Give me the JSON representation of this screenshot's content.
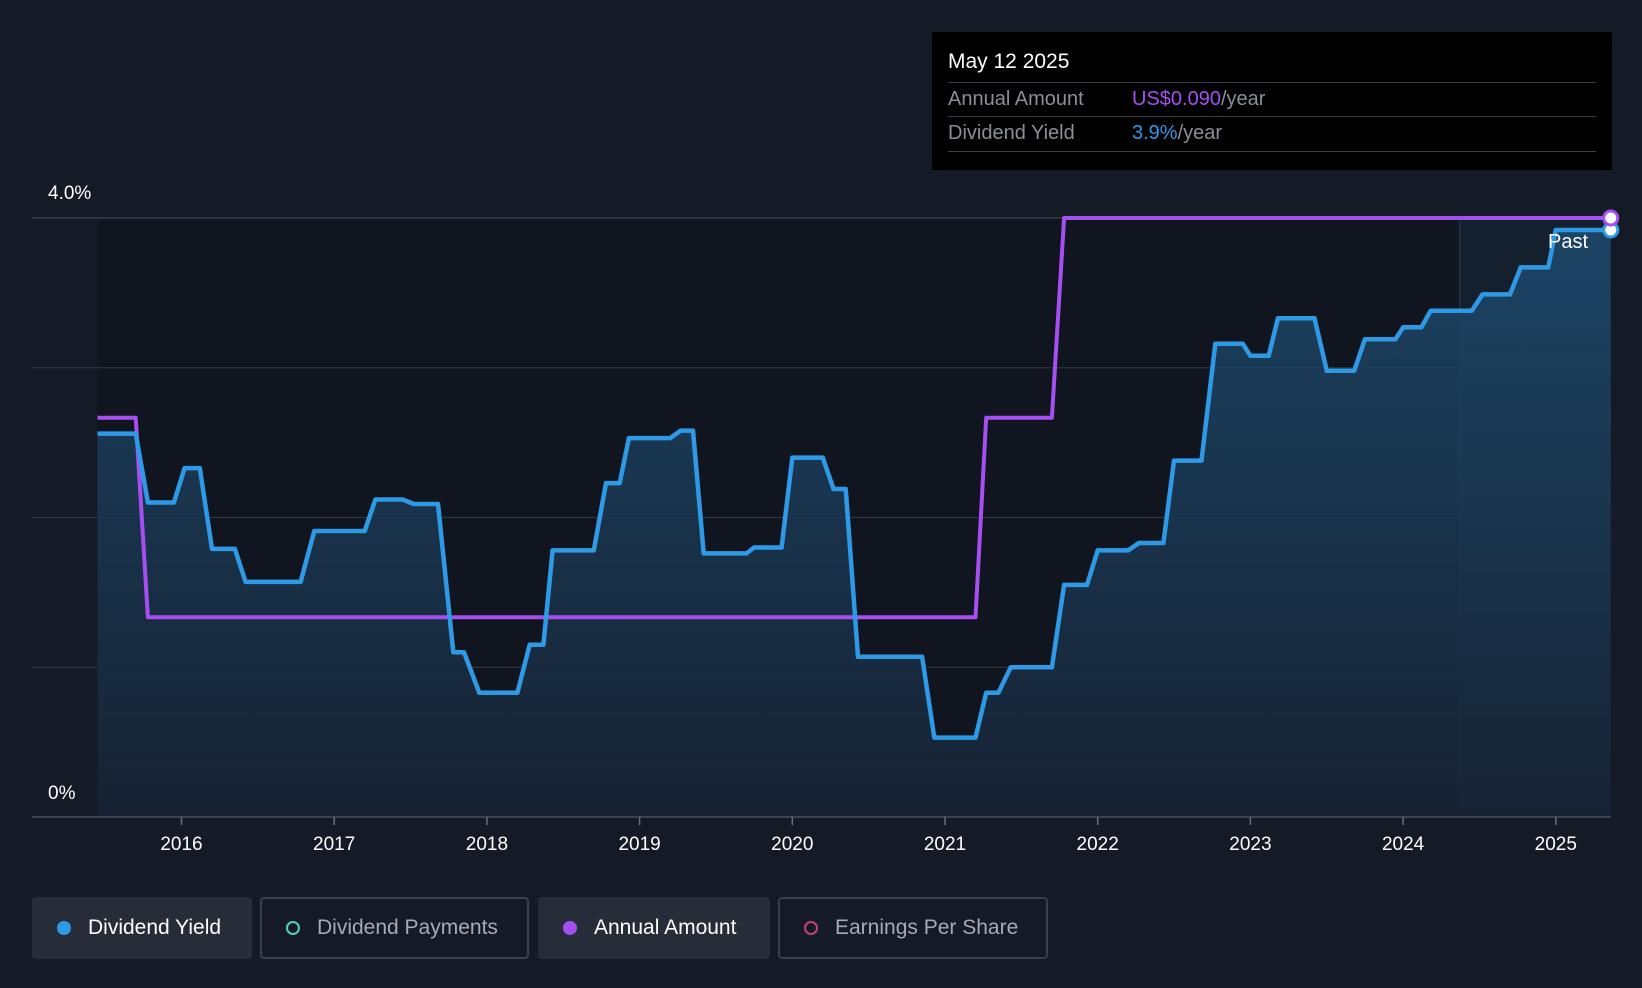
{
  "tooltip": {
    "date": "May 12 2025",
    "rows": [
      {
        "label": "Annual Amount",
        "value": "US$0.090",
        "unit": "/year",
        "color": "#a54ff0"
      },
      {
        "label": "Dividend Yield",
        "value": "3.9%",
        "unit": "/year",
        "color": "#2e9ae6"
      }
    ]
  },
  "y_axis": {
    "top_label": "4.0%",
    "bottom_label": "0%"
  },
  "past_label": "Past",
  "legend": [
    {
      "label": "Dividend Yield",
      "color": "#2e9ae6",
      "active": true
    },
    {
      "label": "Dividend Payments",
      "color": "#4fd1c5",
      "active": false
    },
    {
      "label": "Annual Amount",
      "color": "#a54ff0",
      "active": true
    },
    {
      "label": "Earnings Per Share",
      "color": "#c0417a",
      "active": false
    }
  ],
  "chart_data": {
    "type": "line",
    "x_ticks": [
      "2016",
      "2017",
      "2018",
      "2019",
      "2020",
      "2021",
      "2022",
      "2023",
      "2024",
      "2025"
    ],
    "ylim": [
      0,
      4.0
    ],
    "grid": true,
    "series": [
      {
        "name": "Dividend Yield",
        "unit": "%",
        "color": "#2e9ae6",
        "points": [
          [
            2015.45,
            2.56
          ],
          [
            2015.7,
            2.56
          ],
          [
            2015.78,
            2.1
          ],
          [
            2015.95,
            2.1
          ],
          [
            2016.02,
            2.33
          ],
          [
            2016.12,
            2.33
          ],
          [
            2016.2,
            1.79
          ],
          [
            2016.35,
            1.79
          ],
          [
            2016.42,
            1.57
          ],
          [
            2016.78,
            1.57
          ],
          [
            2016.87,
            1.91
          ],
          [
            2017.2,
            1.91
          ],
          [
            2017.27,
            2.12
          ],
          [
            2017.45,
            2.12
          ],
          [
            2017.52,
            2.09
          ],
          [
            2017.68,
            2.09
          ],
          [
            2017.78,
            1.1
          ],
          [
            2017.85,
            1.1
          ],
          [
            2017.95,
            0.83
          ],
          [
            2018.2,
            0.83
          ],
          [
            2018.28,
            1.15
          ],
          [
            2018.37,
            1.15
          ],
          [
            2018.43,
            1.78
          ],
          [
            2018.7,
            1.78
          ],
          [
            2018.78,
            2.23
          ],
          [
            2018.87,
            2.23
          ],
          [
            2018.93,
            2.53
          ],
          [
            2019.2,
            2.53
          ],
          [
            2019.27,
            2.58
          ],
          [
            2019.35,
            2.58
          ],
          [
            2019.42,
            1.76
          ],
          [
            2019.7,
            1.76
          ],
          [
            2019.75,
            1.8
          ],
          [
            2019.93,
            1.8
          ],
          [
            2020.0,
            2.4
          ],
          [
            2020.2,
            2.4
          ],
          [
            2020.27,
            2.19
          ],
          [
            2020.35,
            2.19
          ],
          [
            2020.43,
            1.07
          ],
          [
            2020.85,
            1.07
          ],
          [
            2020.93,
            0.53
          ],
          [
            2021.2,
            0.53
          ],
          [
            2021.27,
            0.83
          ],
          [
            2021.35,
            0.83
          ],
          [
            2021.43,
            1.0
          ],
          [
            2021.7,
            1.0
          ],
          [
            2021.78,
            1.55
          ],
          [
            2021.93,
            1.55
          ],
          [
            2022.0,
            1.78
          ],
          [
            2022.2,
            1.78
          ],
          [
            2022.27,
            1.83
          ],
          [
            2022.43,
            1.83
          ],
          [
            2022.5,
            2.38
          ],
          [
            2022.68,
            2.38
          ],
          [
            2022.77,
            3.16
          ],
          [
            2022.95,
            3.16
          ],
          [
            2023.0,
            3.08
          ],
          [
            2023.12,
            3.08
          ],
          [
            2023.18,
            3.33
          ],
          [
            2023.42,
            3.33
          ],
          [
            2023.5,
            2.98
          ],
          [
            2023.68,
            2.98
          ],
          [
            2023.75,
            3.19
          ],
          [
            2023.95,
            3.19
          ],
          [
            2024.0,
            3.27
          ],
          [
            2024.12,
            3.27
          ],
          [
            2024.18,
            3.38
          ],
          [
            2024.45,
            3.38
          ],
          [
            2024.52,
            3.49
          ],
          [
            2024.7,
            3.49
          ],
          [
            2024.77,
            3.67
          ],
          [
            2024.95,
            3.67
          ],
          [
            2025.0,
            3.92
          ],
          [
            2025.36,
            3.92
          ]
        ]
      },
      {
        "name": "Annual Amount",
        "unit": "US$",
        "color": "#a54ff0",
        "points": [
          [
            2015.45,
            0.06
          ],
          [
            2015.7,
            0.06
          ],
          [
            2015.78,
            0.03
          ],
          [
            2021.2,
            0.03
          ],
          [
            2021.27,
            0.06
          ],
          [
            2021.7,
            0.06
          ],
          [
            2021.78,
            0.09
          ],
          [
            2025.36,
            0.09
          ]
        ],
        "ylim": [
          0,
          0.09
        ]
      }
    ],
    "forecast_start_x": 2024.37
  }
}
